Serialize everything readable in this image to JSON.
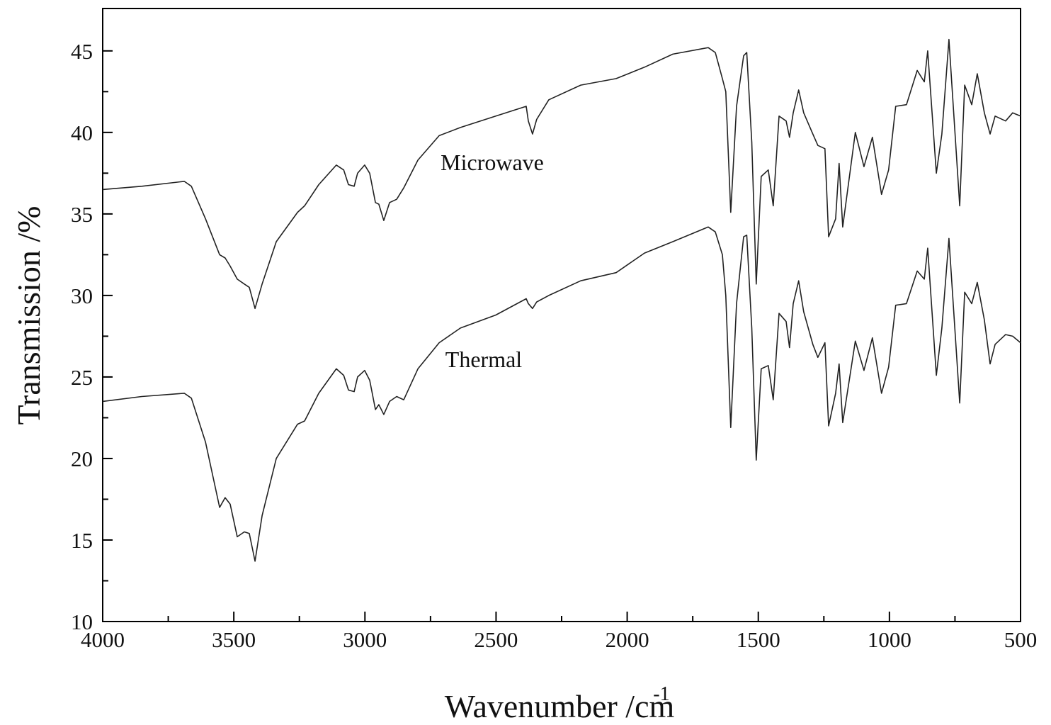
{
  "chart_data": {
    "type": "line",
    "xlabel": "Wavenumber /cm",
    "xlabel_superscript": "-1",
    "ylabel": "Transmission /%",
    "xlim": [
      4000,
      500
    ],
    "ylim": [
      10,
      47.6
    ],
    "xticks": [
      4000,
      3500,
      3000,
      2500,
      2000,
      1500,
      1000,
      500
    ],
    "yticks": [
      10,
      15,
      20,
      25,
      30,
      35,
      40,
      45
    ],
    "xminorticks": [
      3750,
      3250,
      2750,
      2250,
      1750,
      1250,
      750
    ],
    "yminorticks": [
      12.5,
      17.5,
      22.5,
      27.5,
      32.5,
      37.5,
      42.5
    ],
    "x": [
      4000,
      3851,
      3689,
      3662,
      3608,
      3554,
      3533,
      3514,
      3487,
      3460,
      3441,
      3419,
      3392,
      3338,
      3257,
      3230,
      3176,
      3109,
      3081,
      3063,
      3041,
      3028,
      3001,
      2982,
      2960,
      2947,
      2928,
      2906,
      2879,
      2852,
      2798,
      2717,
      2636,
      2501,
      2385,
      2377,
      2361,
      2345,
      2299,
      2177,
      2042,
      1934,
      1826,
      1691,
      1664,
      1637,
      1624,
      1605,
      1583,
      1556,
      1544,
      1525,
      1508,
      1489,
      1462,
      1443,
      1421,
      1394,
      1381,
      1367,
      1346,
      1327,
      1292,
      1273,
      1246,
      1232,
      1205,
      1192,
      1178,
      1130,
      1097,
      1065,
      1030,
      1003,
      976,
      935,
      894,
      867,
      854,
      821,
      800,
      773,
      732,
      713,
      686,
      665,
      638,
      616,
      597,
      557,
      530,
      500
    ],
    "series": [
      {
        "name": "Microwave",
        "color": "#222222",
        "values": [
          36.5,
          36.7,
          37.0,
          36.7,
          34.7,
          32.5,
          32.3,
          31.8,
          31.0,
          30.7,
          30.5,
          29.2,
          30.7,
          33.3,
          35.1,
          35.5,
          36.8,
          38.0,
          37.7,
          36.8,
          36.7,
          37.5,
          38.0,
          37.5,
          35.7,
          35.6,
          34.6,
          35.7,
          35.9,
          36.6,
          38.3,
          39.8,
          40.3,
          41.0,
          41.6,
          40.7,
          39.9,
          40.8,
          42.0,
          42.9,
          43.3,
          44.0,
          44.8,
          45.2,
          44.9,
          43.3,
          42.5,
          35.1,
          41.6,
          44.7,
          44.9,
          39.4,
          30.7,
          37.3,
          37.7,
          35.5,
          41.0,
          40.7,
          39.7,
          41.2,
          42.6,
          41.2,
          39.9,
          39.2,
          39.0,
          33.6,
          34.7,
          38.1,
          34.2,
          40.0,
          37.9,
          39.7,
          36.2,
          37.7,
          41.6,
          41.7,
          43.8,
          43.1,
          45.0,
          37.5,
          39.9,
          45.7,
          35.5,
          42.9,
          41.7,
          43.6,
          41.2,
          39.9,
          41.0,
          40.7,
          41.2,
          41.0
        ]
      },
      {
        "name": "Thermal",
        "color": "#222222",
        "values": [
          23.5,
          23.8,
          24.0,
          23.7,
          21.0,
          17.0,
          17.6,
          17.2,
          15.2,
          15.5,
          15.4,
          13.7,
          16.5,
          20.0,
          22.1,
          22.3,
          24.0,
          25.5,
          25.1,
          24.2,
          24.1,
          25.0,
          25.4,
          24.8,
          23.0,
          23.3,
          22.7,
          23.5,
          23.8,
          23.6,
          25.5,
          27.1,
          28.0,
          28.8,
          29.8,
          29.5,
          29.2,
          29.6,
          30.0,
          30.9,
          31.4,
          32.6,
          33.3,
          34.2,
          33.9,
          32.5,
          30.0,
          21.9,
          29.5,
          33.6,
          33.7,
          28.0,
          19.9,
          25.5,
          25.7,
          23.6,
          28.9,
          28.4,
          26.8,
          29.5,
          30.9,
          29.0,
          27.0,
          26.2,
          27.1,
          22.0,
          24.0,
          25.8,
          22.2,
          27.2,
          25.4,
          27.4,
          24.0,
          25.6,
          29.4,
          29.5,
          31.5,
          31.0,
          32.9,
          25.1,
          28.0,
          33.5,
          23.4,
          30.2,
          29.5,
          30.8,
          28.5,
          25.8,
          27.0,
          27.6,
          27.5,
          27.1
        ]
      }
    ]
  }
}
